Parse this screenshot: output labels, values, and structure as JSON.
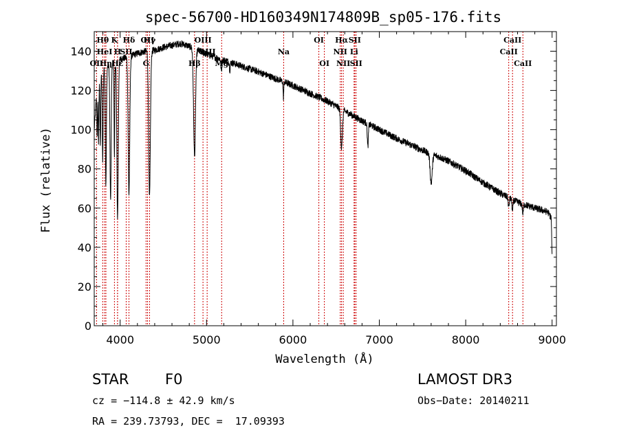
{
  "chart_data": {
    "type": "line",
    "title": "spec-56700-HD160349N174809B_sp05-176.fits",
    "xlabel": "Wavelength (Å)",
    "ylabel": "Flux (relative)",
    "xlim": [
      3700,
      9050
    ],
    "ylim": [
      0,
      1500
    ],
    "xticks": [
      4000,
      5000,
      6000,
      7000,
      8000,
      9000
    ],
    "yticks": [
      0,
      20,
      40,
      60,
      80,
      100,
      120,
      140
    ],
    "ytick_scale": 10,
    "continuum_points": [
      [
        3700,
        1000
      ],
      [
        3730,
        1200
      ],
      [
        3800,
        1300
      ],
      [
        3900,
        1340
      ],
      [
        4000,
        1360
      ],
      [
        4100,
        1370
      ],
      [
        4200,
        1390
      ],
      [
        4300,
        1400
      ],
      [
        4400,
        1405
      ],
      [
        4500,
        1420
      ],
      [
        4600,
        1430
      ],
      [
        4700,
        1440
      ],
      [
        4800,
        1425
      ],
      [
        4900,
        1405
      ],
      [
        5000,
        1385
      ],
      [
        5200,
        1355
      ],
      [
        5400,
        1325
      ],
      [
        5600,
        1295
      ],
      [
        5800,
        1260
      ],
      [
        6000,
        1225
      ],
      [
        6200,
        1185
      ],
      [
        6400,
        1145
      ],
      [
        6600,
        1095
      ],
      [
        6800,
        1045
      ],
      [
        7000,
        1000
      ],
      [
        7200,
        955
      ],
      [
        7400,
        915
      ],
      [
        7600,
        875
      ],
      [
        7700,
        860
      ],
      [
        7800,
        840
      ],
      [
        8000,
        790
      ],
      [
        8200,
        730
      ],
      [
        8400,
        675
      ],
      [
        8600,
        630
      ],
      [
        8800,
        600
      ],
      [
        8950,
        580
      ],
      [
        8990,
        550
      ],
      [
        9000,
        350
      ]
    ],
    "absorption_features": [
      [
        3734,
        4,
        250
      ],
      [
        3750,
        4,
        300
      ],
      [
        3771,
        4,
        350
      ],
      [
        3798,
        5,
        450
      ],
      [
        3835,
        6,
        600
      ],
      [
        3889,
        7,
        700
      ],
      [
        3934,
        4,
        500
      ],
      [
        3970,
        8,
        800
      ],
      [
        4102,
        9,
        700
      ],
      [
        4340,
        10,
        750
      ],
      [
        4861,
        11,
        550
      ],
      [
        5172,
        6,
        60
      ],
      [
        5270,
        5,
        40
      ],
      [
        5890,
        4,
        80
      ],
      [
        6563,
        10,
        200
      ],
      [
        6867,
        6,
        120
      ],
      [
        7600,
        12,
        150
      ],
      [
        8498,
        6,
        50
      ],
      [
        8542,
        6,
        60
      ],
      [
        8662,
        6,
        50
      ]
    ],
    "noise_amplitude": 18,
    "series": [
      {
        "name": "spectrum",
        "color": "#000000"
      }
    ],
    "line_color": "#cc0000",
    "spectral_lines": [
      {
        "label": "Hθ",
        "wavelength": 3798,
        "row": 1
      },
      {
        "label": "HeI",
        "wavelength": 3820,
        "row": 2
      },
      {
        "label": "OII",
        "wavelength": 3727,
        "row": 3
      },
      {
        "label": "Hη",
        "wavelength": 3835,
        "row": 3
      },
      {
        "label": "K",
        "wavelength": 3934,
        "row": 1
      },
      {
        "label": "H",
        "wavelength": 3970,
        "row": 2
      },
      {
        "label": "Hε",
        "wavelength": 3970,
        "row": 3
      },
      {
        "label": "Hδ",
        "wavelength": 4102,
        "row": 1
      },
      {
        "label": "SII",
        "wavelength": 4070,
        "row": 2
      },
      {
        "label": "OII",
        "wavelength": 4317,
        "row": 1
      },
      {
        "label": "G",
        "wavelength": 4300,
        "row": 3
      },
      {
        "label": "Hγ",
        "wavelength": 4340,
        "row": 1
      },
      {
        "label": "Hβ",
        "wavelength": 4861,
        "row": 3
      },
      {
        "label": "OIII",
        "wavelength": 4959,
        "row": 1
      },
      {
        "label": "OIII",
        "wavelength": 5007,
        "row": 2
      },
      {
        "label": "Mg",
        "wavelength": 5175,
        "row": 3
      },
      {
        "label": "Na",
        "wavelength": 5893,
        "row": 2
      },
      {
        "label": "OI",
        "wavelength": 6300,
        "row": 1
      },
      {
        "label": "OI",
        "wavelength": 6364,
        "row": 3
      },
      {
        "label": "Hα",
        "wavelength": 6563,
        "row": 1
      },
      {
        "label": "NII",
        "wavelength": 6548,
        "row": 2
      },
      {
        "label": "NII",
        "wavelength": 6583,
        "row": 3
      },
      {
        "label": "SII",
        "wavelength": 6716,
        "row": 1
      },
      {
        "label": "Li",
        "wavelength": 6708,
        "row": 2
      },
      {
        "label": "SII",
        "wavelength": 6731,
        "row": 3
      },
      {
        "label": "CaII",
        "wavelength": 8498,
        "row": 2
      },
      {
        "label": "CaII",
        "wavelength": 8542,
        "row": 1
      },
      {
        "label": "CaII",
        "wavelength": 8662,
        "row": 3
      }
    ]
  },
  "info": {
    "object_class": "STAR",
    "subclass": "F0",
    "survey": "LAMOST DR3",
    "velocity": "cz = −114.8 ± 42.9 km/s",
    "obs_date": "Obs−Date: 20140211",
    "coordinates": "RA = 239.73793, DEC =  17.09393"
  }
}
